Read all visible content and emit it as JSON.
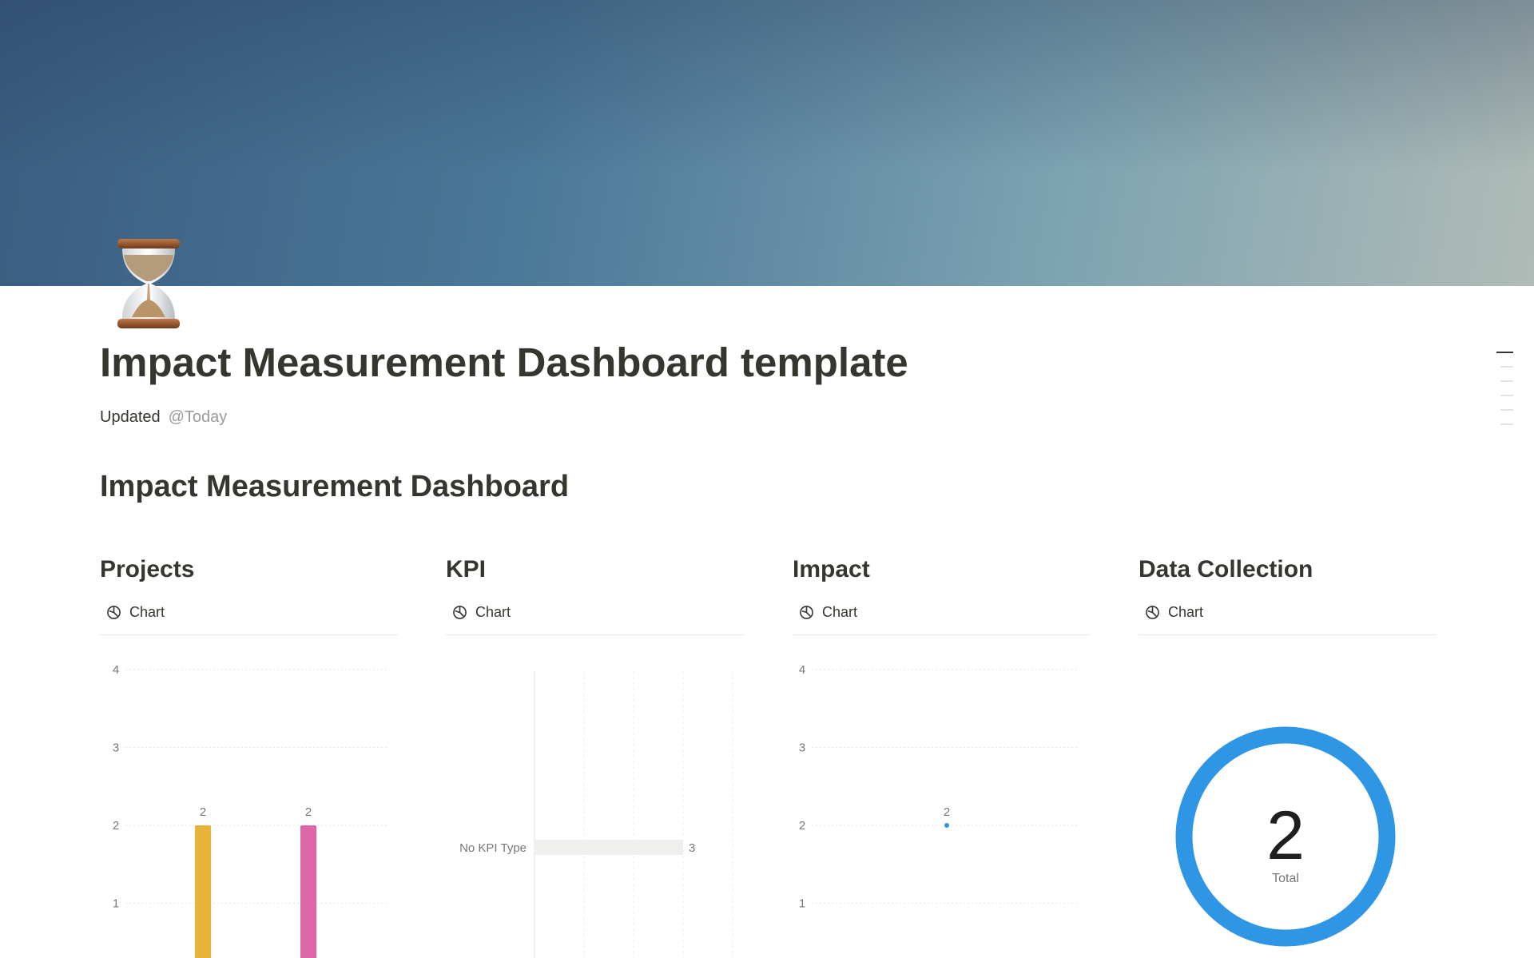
{
  "page": {
    "title": "Impact Measurement Dashboard template",
    "icon": "hourglass-icon",
    "updated_label": "Updated",
    "updated_value": "@Today",
    "section_heading": "Impact Measurement Dashboard"
  },
  "colors": {
    "bar_1": "#E8B339",
    "bar_2": "#DE67A8",
    "kpi_bar": "#EFEFED",
    "accent_blue": "#2F96E6",
    "text": "#37352F"
  },
  "toc": {
    "items": 6,
    "active_index": 0
  },
  "columns": [
    {
      "heading": "Projects",
      "tab_label": "Chart",
      "tab_icon": "chart-pie-icon"
    },
    {
      "heading": "KPI",
      "tab_label": "Chart",
      "tab_icon": "chart-pie-icon"
    },
    {
      "heading": "Impact",
      "tab_label": "Chart",
      "tab_icon": "chart-pie-icon"
    },
    {
      "heading": "Data Collection",
      "tab_label": "Chart",
      "tab_icon": "chart-pie-icon"
    }
  ],
  "chart_data": [
    {
      "type": "bar",
      "orientation": "vertical",
      "yticks": [
        "1",
        "2",
        "3",
        "4"
      ],
      "ylim": [
        0,
        4
      ],
      "grid": true,
      "series": [
        {
          "values": [
            2,
            2
          ]
        }
      ],
      "data_labels": [
        "2",
        "2"
      ]
    },
    {
      "type": "bar",
      "orientation": "horizontal",
      "categories": [
        "No KPI Type"
      ],
      "values": [
        3
      ],
      "data_labels": [
        "3"
      ],
      "xlim": [
        0,
        4
      ],
      "grid": true
    },
    {
      "type": "line",
      "yticks": [
        "1",
        "2",
        "3",
        "4"
      ],
      "ylim": [
        0,
        4
      ],
      "grid": true,
      "values": [
        2
      ],
      "data_labels": [
        "2"
      ]
    },
    {
      "type": "pie",
      "style": "donut",
      "values": [
        2
      ],
      "center_value": "2",
      "center_label": "Total"
    }
  ]
}
